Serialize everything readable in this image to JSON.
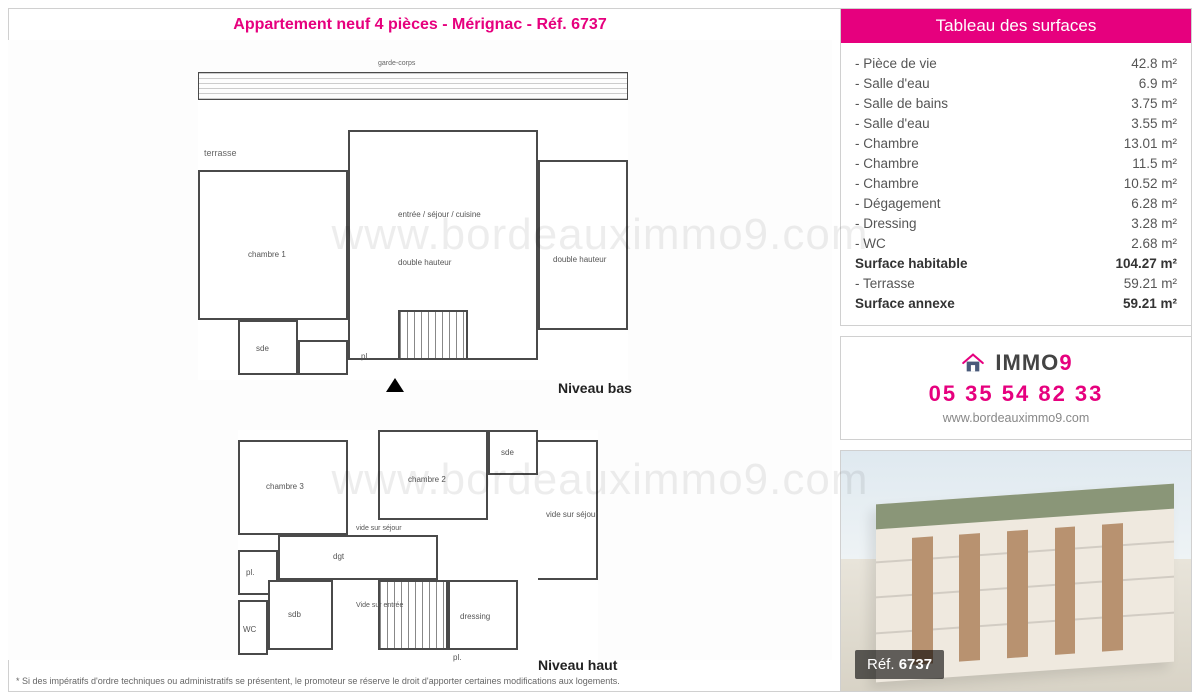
{
  "title": "Appartement neuf 4 pièces - Mérignac - Réf. 6737",
  "watermark": "www.bordeauximmo9.com",
  "surfaces": {
    "header": "Tableau des surfaces",
    "rows": [
      {
        "label": "- Pièce de vie",
        "value": "42.8 m²",
        "bold": false
      },
      {
        "label": "- Salle d'eau",
        "value": "6.9 m²",
        "bold": false
      },
      {
        "label": "- Salle de bains",
        "value": "3.75 m²",
        "bold": false
      },
      {
        "label": "- Salle d'eau",
        "value": "3.55 m²",
        "bold": false
      },
      {
        "label": "- Chambre",
        "value": "13.01 m²",
        "bold": false
      },
      {
        "label": "- Chambre",
        "value": "11.5 m²",
        "bold": false
      },
      {
        "label": "- Chambre",
        "value": "10.52 m²",
        "bold": false
      },
      {
        "label": "- Dégagement",
        "value": "6.28 m²",
        "bold": false
      },
      {
        "label": "- Dressing",
        "value": "3.28 m²",
        "bold": false
      },
      {
        "label": "- WC",
        "value": "2.68 m²",
        "bold": false
      },
      {
        "label": "Surface habitable",
        "value": "104.27 m²",
        "bold": true
      },
      {
        "label": "- Terrasse",
        "value": "59.21 m²",
        "bold": false
      },
      {
        "label": "Surface annexe",
        "value": "59.21 m²",
        "bold": true
      }
    ]
  },
  "contact": {
    "brand_prefix": "IMMO",
    "brand_suffix": "9",
    "phone": "05 35 54 82 33",
    "website": "www.bordeauximmo9.com"
  },
  "photo": {
    "ref_label": "Réf.",
    "ref_number": "6737",
    "colors": {
      "sky": "#dfe9f0",
      "facade": "#efe9df",
      "wood": "#b89270",
      "roof_green": "#8a9678"
    }
  },
  "disclaimer": "* Si des impératifs d'ordre techniques ou administratifs se présentent, le promoteur se réserve le droit d'apporter certaines modifications aux logements.",
  "floorplan": {
    "level_bas": "Niveau bas",
    "level_haut": "Niveau haut",
    "terrasse": "terrasse",
    "garde_corps": "garde-corps",
    "rooms_upper": {
      "chambre1": "chambre 1",
      "entree": "entrée / séjour / cuisine",
      "double_hauteur": "double hauteur",
      "sde": "sde",
      "pl": "pl."
    },
    "rooms_lower": {
      "chambre2": "chambre 2",
      "chambre3": "chambre 3",
      "dgt": "dgt",
      "dressing": "dressing",
      "sdb": "sdb",
      "wc": "WC",
      "sde": "sde",
      "pl": "pl.",
      "vide_sejour": "vide sur séjour",
      "vide_entree": "Vide sur entrée",
      "vide_sejour2": "vide sur séjour"
    },
    "colors": {
      "wall": "#4a4a4a",
      "text": "#555555",
      "accent": "#e6007e"
    }
  }
}
